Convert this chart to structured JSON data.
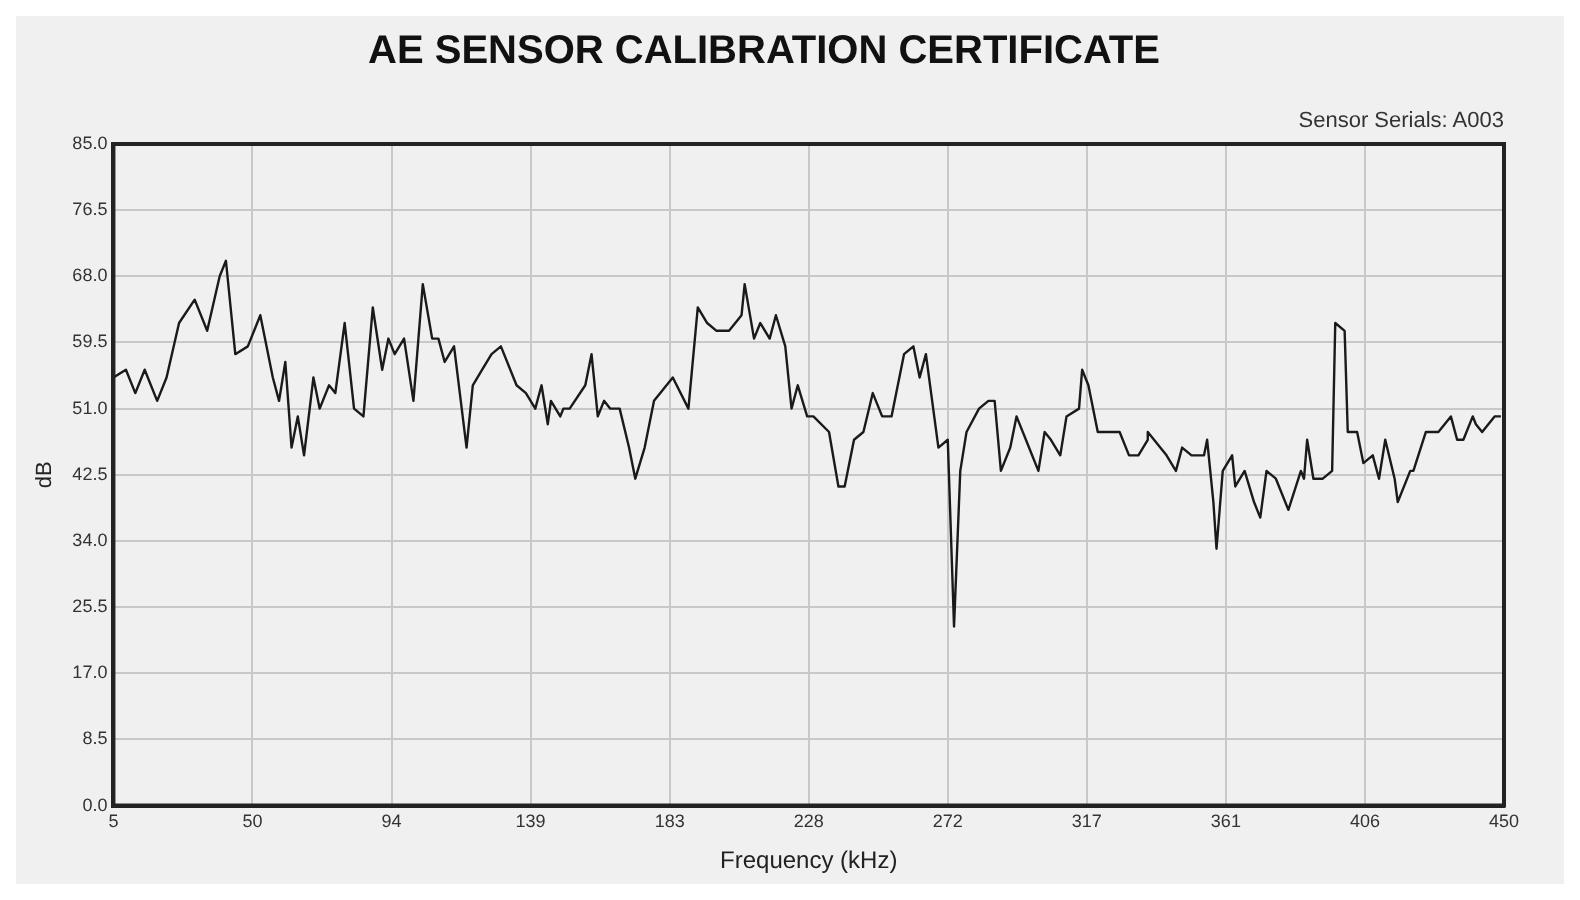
{
  "chart_data": {
    "type": "line",
    "title": "AE SENSOR CALIBRATION CERTIFICATE",
    "xlabel": "Frequency (kHz)",
    "ylabel": "dB",
    "annotations": [
      "Sensor Serials: A003"
    ],
    "x": [
      5,
      9,
      12,
      15,
      19,
      22,
      26,
      31,
      35,
      39,
      41,
      44,
      48,
      52,
      56,
      58,
      60,
      62,
      64,
      66,
      69,
      71,
      74,
      76,
      79,
      82,
      85,
      88,
      91,
      93,
      95,
      98,
      101,
      104,
      107,
      109,
      111,
      114,
      118,
      120,
      123,
      126,
      129,
      133,
      134,
      137,
      140,
      142,
      144,
      145,
      148,
      149,
      151,
      156,
      158,
      160,
      162,
      164,
      167,
      170,
      172,
      175,
      178,
      182,
      184,
      189,
      192,
      195,
      198,
      202,
      206,
      207,
      210,
      212,
      215,
      217,
      220,
      222,
      224,
      227,
      229,
      234,
      237,
      239,
      242,
      245,
      248,
      251,
      254,
      258,
      261,
      263,
      265,
      269,
      272,
      274,
      276,
      278,
      282,
      285,
      287,
      289,
      292,
      294,
      298,
      301,
      303,
      305,
      308,
      310,
      314,
      315,
      317,
      320,
      323,
      327,
      330,
      333,
      336,
      336,
      342,
      345,
      347,
      350,
      354,
      355,
      357,
      358,
      360,
      363,
      364,
      367,
      370,
      372,
      374,
      377,
      381,
      385,
      386,
      387,
      389,
      392,
      395,
      396,
      399,
      400,
      403,
      405,
      408,
      410,
      412,
      415,
      416,
      420,
      421,
      425,
      429,
      433,
      435,
      437,
      440,
      441,
      443,
      447,
      449
    ],
    "series": [
      {
        "color": "#1a1a1a",
        "values": [
          55,
          56,
          53,
          56,
          52,
          55,
          62,
          65,
          61,
          68,
          70,
          58,
          59,
          63,
          55,
          52,
          57,
          46,
          50,
          45,
          55,
          51,
          54,
          53,
          62,
          51,
          50,
          64,
          56,
          60,
          58,
          60,
          52,
          67,
          60,
          60,
          57,
          59,
          46,
          54,
          56,
          58,
          59,
          55,
          54,
          53,
          51,
          54,
          49,
          52,
          50,
          51,
          51,
          54,
          58,
          50,
          52,
          51,
          51,
          46,
          42,
          46,
          52,
          54,
          55,
          51,
          64,
          62,
          61,
          61,
          63,
          67,
          60,
          62,
          60,
          63,
          59,
          51,
          54,
          50,
          50,
          48,
          41,
          41,
          47,
          48,
          53,
          50,
          50,
          58,
          59,
          55,
          58,
          46,
          47,
          23,
          43,
          48,
          51,
          52,
          52,
          43,
          46,
          50,
          46,
          43,
          48,
          47,
          45,
          50,
          51,
          56,
          54,
          48,
          48,
          48,
          45,
          45,
          47,
          48,
          45,
          43,
          46,
          45,
          45,
          47,
          39,
          33,
          43,
          45,
          41,
          43,
          39,
          37,
          43,
          42,
          38,
          43,
          42,
          47,
          42,
          42,
          43,
          62,
          61,
          48,
          48,
          44,
          45,
          42,
          47,
          42,
          39,
          43,
          43,
          48,
          48,
          50,
          47,
          47,
          50,
          49,
          48,
          50,
          50
        ]
      }
    ],
    "xlim": [
      5,
      450
    ],
    "xticks": [
      5,
      {
        "value": 49.5,
        "label": "50"
      },
      94,
      {
        "value": 138.5,
        "label": "139"
      },
      183,
      {
        "value": 227.5,
        "label": "228"
      },
      272,
      {
        "value": 316.5,
        "label": "317"
      },
      361,
      {
        "value": 405.5,
        "label": "406"
      },
      450
    ],
    "ylim": [
      0,
      85
    ],
    "yticks": [
      {
        "value": 0,
        "label": "0.0"
      },
      {
        "value": 8.5,
        "label": "8.5"
      },
      {
        "value": 17,
        "label": "17.0"
      },
      {
        "value": 25.5,
        "label": "25.5"
      },
      {
        "value": 34,
        "label": "34.0"
      },
      {
        "value": 42.5,
        "label": "42.5"
      },
      {
        "value": 51,
        "label": "51.0"
      },
      {
        "value": 59.5,
        "label": "59.5"
      },
      {
        "value": 68,
        "label": "68.0"
      },
      {
        "value": 76.5,
        "label": "76.5"
      },
      {
        "value": 85,
        "label": "85.0"
      }
    ],
    "grid": true,
    "marker": "none",
    "line_style": "solid"
  }
}
